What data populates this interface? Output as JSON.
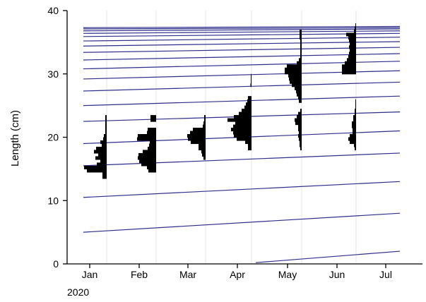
{
  "chart_data": {
    "type": "bar",
    "ylabel": "Length (cm)",
    "year_label": "2020",
    "ylim": [
      0,
      40
    ],
    "y_ticks": [
      0,
      10,
      20,
      30,
      40
    ],
    "x_ticks": [
      "Jan",
      "Feb",
      "Mar",
      "Apr",
      "May",
      "Jun",
      "Jul"
    ],
    "grid": "vertical",
    "colors": {
      "bars": "#000000",
      "growth_curves": "#2d2d8c",
      "grid": "#e6e6e6"
    },
    "growth_curves_start_end_cm": [
      [
        0.2,
        2.0
      ],
      [
        5.0,
        8.0
      ],
      [
        10.5,
        13.0
      ],
      [
        15.5,
        17.5
      ],
      [
        19.0,
        21.0
      ],
      [
        22.5,
        24.0
      ],
      [
        25.0,
        26.5
      ],
      [
        27.3,
        28.7
      ],
      [
        29.2,
        30.5
      ],
      [
        30.8,
        32.0
      ],
      [
        32.2,
        33.2
      ],
      [
        33.4,
        34.2
      ],
      [
        34.4,
        35.1
      ],
      [
        35.2,
        35.8
      ],
      [
        35.9,
        36.4
      ],
      [
        36.4,
        36.8
      ],
      [
        36.8,
        37.1
      ],
      [
        37.1,
        37.3
      ],
      [
        37.3,
        37.5
      ]
    ],
    "samples": [
      {
        "month": "Jan",
        "bins": [
          [
            13.75,
            0.6
          ],
          [
            14.25,
            0.6
          ],
          [
            14.75,
            2.8
          ],
          [
            15.25,
            3.2
          ],
          [
            15.75,
            1.4
          ],
          [
            16.25,
            0.9
          ],
          [
            16.75,
            1.6
          ],
          [
            17.25,
            1.2
          ],
          [
            17.75,
            1.8
          ],
          [
            18.25,
            1.5
          ],
          [
            18.75,
            0.7
          ],
          [
            19.25,
            0.9
          ],
          [
            19.75,
            0.5
          ],
          [
            20.25,
            0.4
          ],
          [
            20.75,
            0.2
          ],
          [
            21.25,
            0.2
          ],
          [
            21.75,
            0.2
          ],
          [
            22.25,
            0.2
          ],
          [
            22.75,
            0.2
          ],
          [
            23.25,
            0.2
          ]
        ]
      },
      {
        "month": "Feb",
        "bins": [
          [
            14.75,
            1.1
          ],
          [
            15.25,
            1.3
          ],
          [
            15.75,
            2.1
          ],
          [
            16.25,
            2.4
          ],
          [
            16.75,
            2.6
          ],
          [
            17.25,
            2.5
          ],
          [
            17.75,
            1.9
          ],
          [
            18.25,
            1.2
          ],
          [
            18.75,
            1.0
          ],
          [
            19.25,
            0.9
          ],
          [
            19.75,
            2.7
          ],
          [
            20.25,
            2.6
          ],
          [
            20.75,
            1.3
          ],
          [
            21.25,
            1.2
          ],
          [
            22.75,
            0.8
          ],
          [
            23.25,
            0.8
          ]
        ]
      },
      {
        "month": "Mar",
        "bins": [
          [
            16.75,
            0.3
          ],
          [
            17.25,
            0.5
          ],
          [
            17.75,
            0.6
          ],
          [
            18.25,
            1.0
          ],
          [
            18.75,
            1.0
          ],
          [
            19.25,
            2.1
          ],
          [
            19.75,
            2.5
          ],
          [
            20.25,
            2.6
          ],
          [
            20.75,
            2.2
          ],
          [
            21.25,
            1.8
          ],
          [
            21.75,
            0.4
          ],
          [
            22.25,
            0.3
          ],
          [
            22.75,
            0.2
          ],
          [
            23.25,
            0.2
          ]
        ]
      },
      {
        "month": "Apr",
        "bins": [
          [
            18.25,
            0.5
          ],
          [
            18.75,
            0.5
          ],
          [
            19.25,
            0.9
          ],
          [
            19.75,
            2.1
          ],
          [
            20.25,
            2.5
          ],
          [
            20.75,
            2.6
          ],
          [
            21.25,
            2.9
          ],
          [
            21.75,
            2.6
          ],
          [
            22.25,
            2.3
          ],
          [
            22.75,
            3.4
          ],
          [
            23.25,
            2.5
          ],
          [
            23.75,
            1.8
          ],
          [
            24.25,
            1.4
          ],
          [
            24.75,
            1.0
          ],
          [
            25.25,
            0.8
          ],
          [
            25.75,
            0.6
          ],
          [
            26.25,
            0.5
          ],
          [
            28.25,
            0.15
          ],
          [
            28.75,
            0.1
          ],
          [
            29.25,
            0.1
          ],
          [
            29.75,
            0.1
          ]
        ]
      },
      {
        "month": "May",
        "bins": [
          [
            18.25,
            0.2
          ],
          [
            18.75,
            0.3
          ],
          [
            19.25,
            0.3
          ],
          [
            19.75,
            0.4
          ],
          [
            20.25,
            0.5
          ],
          [
            20.75,
            0.4
          ],
          [
            21.25,
            0.5
          ],
          [
            21.75,
            0.5
          ],
          [
            22.25,
            0.9
          ],
          [
            22.75,
            1.0
          ],
          [
            23.25,
            0.7
          ],
          [
            23.75,
            0.5
          ],
          [
            24.25,
            0.2
          ],
          [
            25.75,
            0.4
          ],
          [
            26.25,
            0.5
          ],
          [
            26.75,
            0.7
          ],
          [
            27.25,
            0.8
          ],
          [
            27.75,
            1.0
          ],
          [
            28.25,
            1.4
          ],
          [
            28.75,
            1.7
          ],
          [
            29.25,
            1.8
          ],
          [
            29.75,
            1.9
          ],
          [
            30.25,
            2.4
          ],
          [
            30.75,
            2.4
          ],
          [
            31.25,
            2.1
          ],
          [
            31.75,
            0.7
          ],
          [
            32.25,
            0.4
          ],
          [
            32.75,
            0.2
          ],
          [
            33.25,
            0.2
          ],
          [
            33.75,
            0.2
          ],
          [
            34.25,
            0.2
          ],
          [
            34.75,
            0.2
          ],
          [
            35.25,
            0.2
          ],
          [
            35.75,
            0.3
          ],
          [
            36.25,
            0.3
          ],
          [
            36.75,
            0.3
          ]
        ]
      },
      {
        "month": "Jun",
        "bins": [
          [
            18.25,
            0.2
          ],
          [
            18.75,
            0.3
          ],
          [
            19.25,
            0.9
          ],
          [
            19.75,
            1.1
          ],
          [
            20.25,
            0.9
          ],
          [
            20.75,
            0.5
          ],
          [
            21.25,
            0.5
          ],
          [
            21.75,
            0.6
          ],
          [
            22.25,
            0.6
          ],
          [
            22.75,
            0.4
          ],
          [
            23.25,
            0.4
          ],
          [
            23.75,
            0.2
          ],
          [
            24.25,
            0.2
          ],
          [
            24.75,
            0.1
          ],
          [
            25.25,
            0.1
          ],
          [
            25.75,
            0.1
          ],
          [
            30.25,
            2.0
          ],
          [
            30.75,
            2.0
          ],
          [
            31.25,
            2.0
          ],
          [
            31.75,
            1.6
          ],
          [
            32.25,
            1.3
          ],
          [
            32.75,
            1.1
          ],
          [
            33.25,
            1.0
          ],
          [
            33.75,
            0.9
          ],
          [
            34.25,
            1.0
          ],
          [
            34.75,
            0.9
          ],
          [
            35.25,
            1.0
          ],
          [
            35.75,
            1.1
          ],
          [
            36.25,
            1.4
          ],
          [
            36.75,
            0.3
          ],
          [
            37.25,
            0.2
          ],
          [
            37.75,
            0.1
          ]
        ]
      }
    ]
  }
}
